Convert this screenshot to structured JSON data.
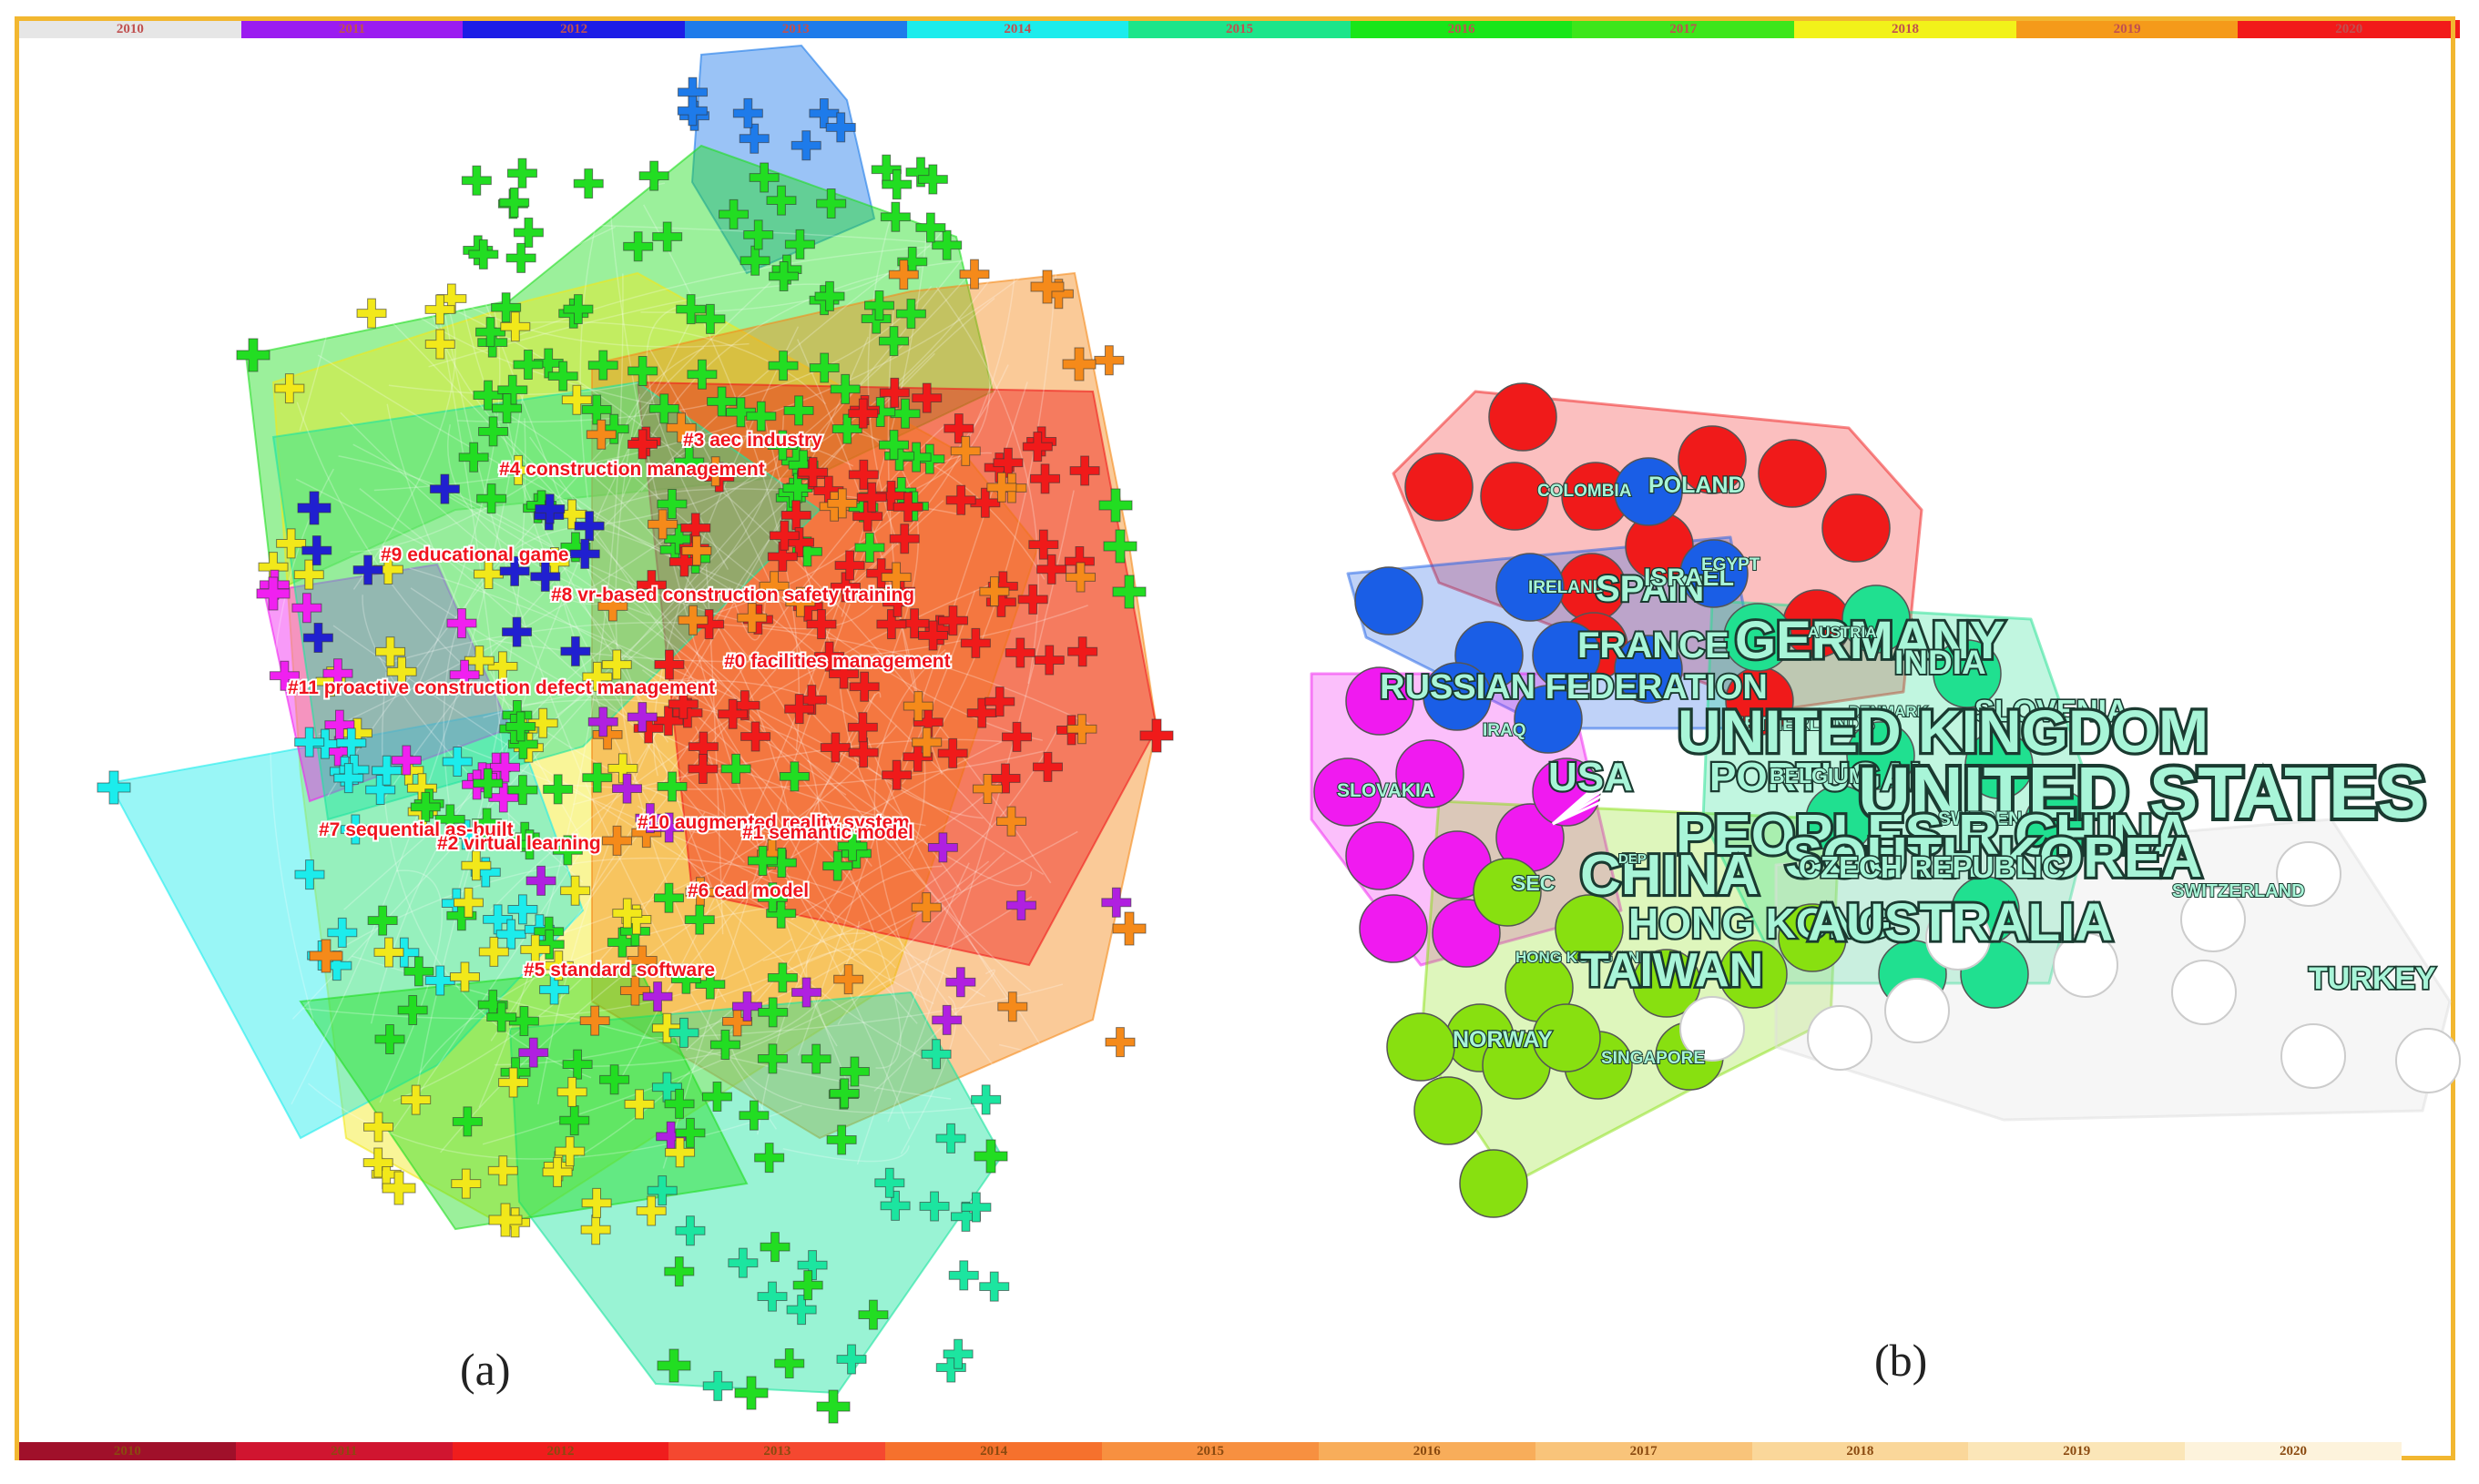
{
  "top_bar": {
    "years": [
      "2010",
      "2011",
      "2012",
      "2013",
      "2014",
      "2015",
      "2016",
      "2017",
      "2018",
      "2019",
      "2020"
    ],
    "colors": [
      "#e6e6e6",
      "#9b1cf0",
      "#1d1de6",
      "#1e7bea",
      "#1cecec",
      "#1ce58a",
      "#19e619",
      "#3de61b",
      "#f2f21a",
      "#f59a1a",
      "#f21a1a"
    ]
  },
  "bottom_bar": {
    "years": [
      "2010",
      "2011",
      "2012",
      "2013",
      "2014",
      "2015",
      "2016",
      "2017",
      "2018",
      "2019",
      "2020"
    ],
    "colors": [
      "#a0102a",
      "#d01530",
      "#f01d1d",
      "#f54830",
      "#f6712d",
      "#f79040",
      "#f8ad5a",
      "#f9c47a",
      "#fad79a",
      "#fbe6b8",
      "#fdf3dc"
    ]
  },
  "panel_a": {
    "label": "(a)",
    "clusters": [
      {
        "label": "#3 aec industry"
      },
      {
        "label": "#4 construction management"
      },
      {
        "label": "#9 educational game"
      },
      {
        "label": "#8 vr-based construction safety training"
      },
      {
        "label": "#0 facilities management"
      },
      {
        "label": "#11 proactive construction defect management"
      },
      {
        "label": "#7 sequential as-built"
      },
      {
        "label": "#10 augmented reality system"
      },
      {
        "label": "#2 virtual learning"
      },
      {
        "label": "#1 semantic model"
      },
      {
        "label": "#6 cad model"
      },
      {
        "label": "#5 standard software"
      }
    ],
    "colors": {
      "blue": "#1e7bea",
      "green": "#22dd22",
      "yellow": "#f2e81a",
      "orange": "#f58a1a",
      "red": "#f01a1a",
      "cyan": "#1cecec",
      "teal": "#1ce5a0",
      "purple": "#b020e0",
      "magenta": "#f020f0",
      "navy": "#2020d0"
    }
  },
  "panel_b": {
    "label": "(b)",
    "countries": [
      {
        "name": "COLOMBIA"
      },
      {
        "name": "POLAND"
      },
      {
        "name": "IRELAND"
      },
      {
        "name": "SPAIN"
      },
      {
        "name": "ISRAEL"
      },
      {
        "name": "EGYPT"
      },
      {
        "name": "FRANCE"
      },
      {
        "name": "GERMANY"
      },
      {
        "name": "AUSTRIA"
      },
      {
        "name": "INDIA"
      },
      {
        "name": "RUSSIAN FEDERATION"
      },
      {
        "name": "IRAQ"
      },
      {
        "name": "NETHERLANDS"
      },
      {
        "name": "DENMARK"
      },
      {
        "name": "SLOVENIA"
      },
      {
        "name": "UNITED KINGDOM"
      },
      {
        "name": "SLOVAKIA"
      },
      {
        "name": "USA"
      },
      {
        "name": "PORTUGAL"
      },
      {
        "name": "BELGIUM"
      },
      {
        "name": "UNITED STATES"
      },
      {
        "name": "SWEDEN"
      },
      {
        "name": "PEOPLES R CHINA"
      },
      {
        "name": "SOUTH KOREA"
      },
      {
        "name": "CHINA"
      },
      {
        "name": "DEP"
      },
      {
        "name": "CZECH REPUBLIC"
      },
      {
        "name": "SEC"
      },
      {
        "name": "SWITZERLAND"
      },
      {
        "name": "HONG KONG"
      },
      {
        "name": "AUSTRALIA"
      },
      {
        "name": "HONG KONG UNIV"
      },
      {
        "name": "TAIWAN"
      },
      {
        "name": "TURKEY"
      },
      {
        "name": "NORWAY"
      },
      {
        "name": "SINGAPORE"
      }
    ],
    "colors": {
      "red": "#f01a1a",
      "blue": "#1a5ee6",
      "magenta": "#f01af0",
      "lime": "#88e010",
      "teal": "#20e090",
      "empty": "#ffffff"
    }
  }
}
